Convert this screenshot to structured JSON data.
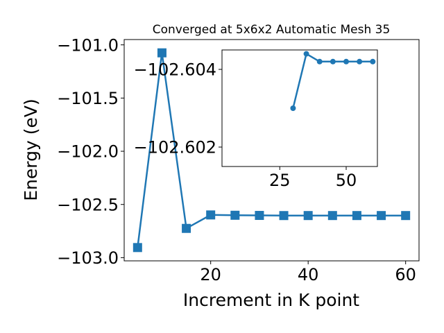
{
  "chart_data": [
    {
      "type": "line",
      "title": "Converged at 5x6x2 Automatic Mesh 35",
      "xlabel": "Increment in K point",
      "ylabel": "Energy (eV)",
      "xlim": [
        2.25,
        62.75
      ],
      "ylim": [
        -103.03,
        -100.95
      ],
      "xticks": [
        20,
        40,
        60
      ],
      "yticks": [
        -101.0,
        -101.5,
        -102.0,
        -102.5,
        -103.0
      ],
      "xtick_labels": [
        "20",
        "40",
        "60"
      ],
      "ytick_labels": [
        "−101.0",
        "−101.5",
        "−102.0",
        "−102.5",
        "−103.0"
      ],
      "marker": "square",
      "color": "#1f77b4",
      "grid": false,
      "series": [
        {
          "x": [
            5,
            10,
            15,
            20,
            25,
            30,
            35,
            40,
            45,
            50,
            55,
            60
          ],
          "y": [
            -102.905,
            -101.075,
            -102.725,
            -102.5985,
            -102.6015,
            -102.603,
            -102.6044,
            -102.6042,
            -102.6042,
            -102.6042,
            -102.6042,
            -102.6042
          ]
        }
      ]
    },
    {
      "type": "line",
      "title": "",
      "xlabel": "",
      "ylabel": "",
      "inset": true,
      "xlim": [
        3.25,
        61.75
      ],
      "ylim": [
        -102.6015,
        -102.6045
      ],
      "xticks": [
        25,
        50
      ],
      "yticks": [
        -102.604,
        -102.602
      ],
      "xtick_labels": [
        "25",
        "50"
      ],
      "ytick_labels": [
        "−102.604",
        "−102.602"
      ],
      "marker": "circle",
      "color": "#1f77b4",
      "grid": false,
      "series": [
        {
          "x": [
            30,
            35,
            40,
            45,
            50,
            55,
            60
          ],
          "y": [
            -102.603,
            -102.6044,
            -102.6042,
            -102.6042,
            -102.6042,
            -102.6042,
            -102.6042
          ]
        }
      ]
    }
  ]
}
